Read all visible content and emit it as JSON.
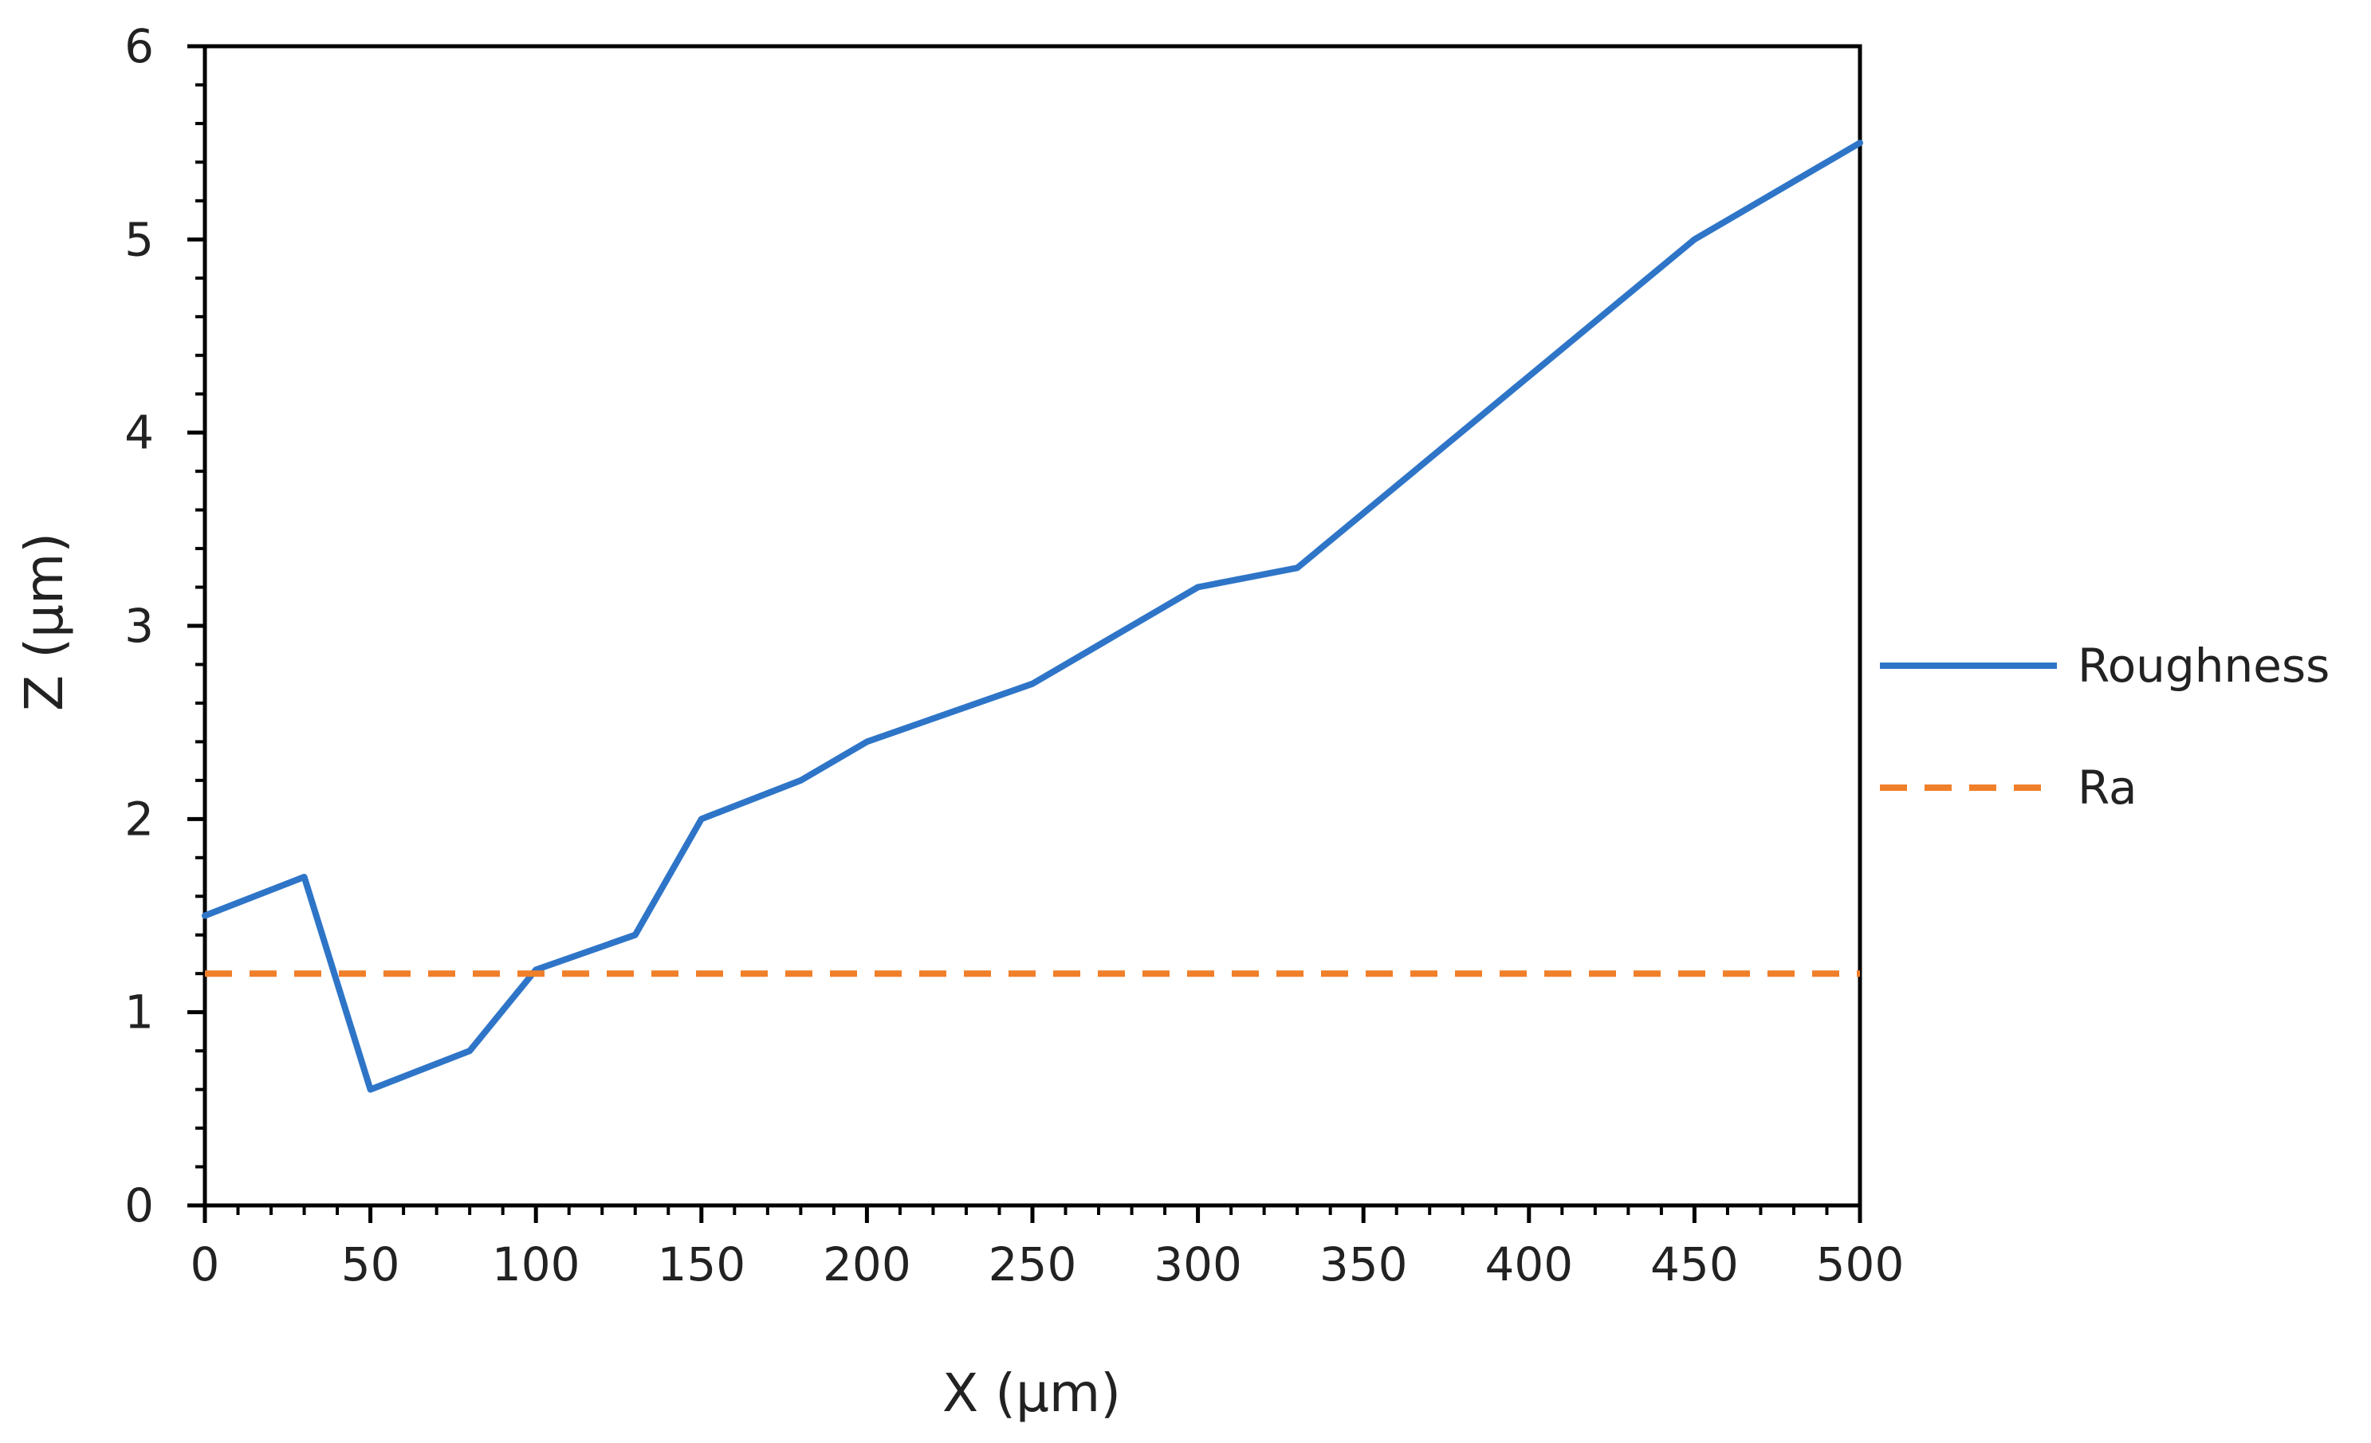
{
  "chart_data": {
    "type": "line",
    "title": "",
    "xlabel": "X (μm)",
    "ylabel": "Z (μm)",
    "xlim": [
      0,
      500
    ],
    "ylim": [
      0,
      6
    ],
    "xticks": [
      0,
      50,
      100,
      150,
      200,
      250,
      300,
      350,
      400,
      450,
      500
    ],
    "yticks": [
      0,
      1,
      2,
      3,
      4,
      5,
      6
    ],
    "x_minor_step": 10,
    "y_minor_step": 0.2,
    "grid": false,
    "legend_position": "right",
    "series": [
      {
        "name": "Roughness",
        "style": "solid",
        "color": "#2E75C8",
        "x": [
          0,
          30,
          50,
          80,
          100,
          130,
          150,
          180,
          200,
          250,
          300,
          330,
          450,
          500
        ],
        "y": [
          1.5,
          1.7,
          0.6,
          0.8,
          1.22,
          1.4,
          2.0,
          2.2,
          2.4,
          2.7,
          3.2,
          3.3,
          5.0,
          5.5
        ]
      },
      {
        "name": "Ra",
        "style": "dashed",
        "color": "#F07F2A",
        "x": [
          0,
          500
        ],
        "y": [
          1.2,
          1.2
        ]
      }
    ]
  }
}
